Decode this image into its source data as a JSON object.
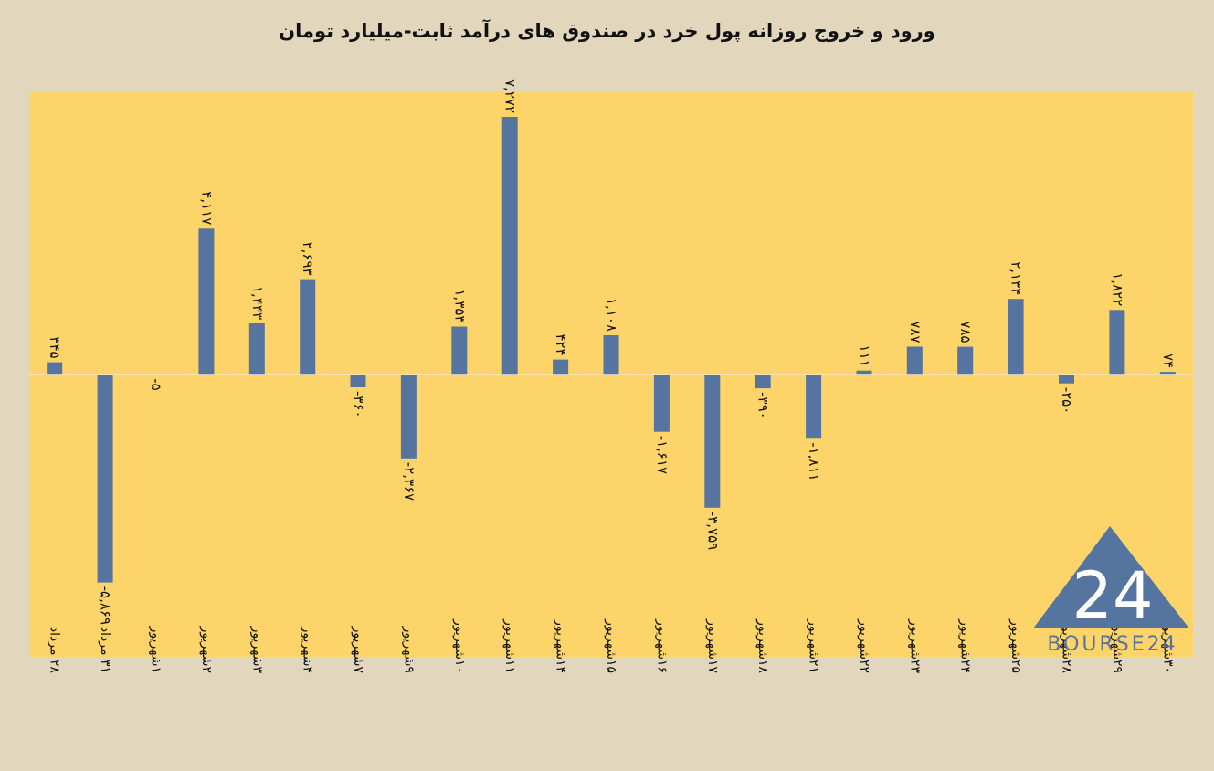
{
  "title": "ورود و خروج روزانه پول خرد در صندوق های درآمد ثابت-میلیارد تومان",
  "logo": {
    "text": "BOURSE24",
    "mark": "24",
    "color": "#5574a0"
  },
  "colors": {
    "background": "#e2d7bd",
    "plot_background": "#fcd46a",
    "bar": "#5574a0",
    "zero_line": "#f3ead0"
  },
  "chart_data": {
    "type": "bar",
    "title": "ورود و خروج روزانه پول خرد در صندوق های درآمد ثابت-میلیارد تومان",
    "xlabel": "",
    "ylabel": "",
    "grid": false,
    "categories": [
      "۲۸ مرداد",
      "۳۱ مرداد",
      "۱شهریور",
      "۲شهریور",
      "۳شهریور",
      "۴شهریور",
      "۷شهریور",
      "۹شهریور",
      "۱۰شهریور",
      "۱۱شهریور",
      "۱۴شهریور",
      "۱۵شهریور",
      "۱۶شهریور",
      "۱۷شهریور",
      "۱۸شهریور",
      "۲۱شهریور",
      "۲۲شهریور",
      "۲۳شهریور",
      "۲۴شهریور",
      "۲۵شهریور",
      "۲۸شهریور",
      "۲۹شهریور",
      "۳۰شهریور"
    ],
    "values": [
      345,
      -5869,
      -5,
      4117,
      1443,
      2693,
      -360,
      -2367,
      1353,
      7272,
      424,
      1108,
      -1617,
      -3759,
      -390,
      -1811,
      111,
      787,
      785,
      2134,
      -250,
      1822,
      74
    ],
    "value_labels": [
      "۳۴۵",
      "-۵,۸۶۹",
      "-۵",
      "۴,۱۱۷",
      "۱,۴۴۳",
      "۲,۶۹۳",
      "-۳۶۰",
      "-۲,۳۶۷",
      "۱,۳۵۳",
      "۷,۲۷۲",
      "۴۲۴",
      "۱,۱۰۸",
      "-۱,۶۱۷",
      "-۳,۷۵۹",
      "-۳۹۰",
      "-۱,۸۱۱",
      "۱۱۱",
      "۷۸۷",
      "۷۸۵",
      "۲,۱۳۴",
      "-۲۵۰",
      "۱,۸۲۲",
      "۷۴"
    ],
    "ylim": [
      -8000,
      8000
    ]
  }
}
